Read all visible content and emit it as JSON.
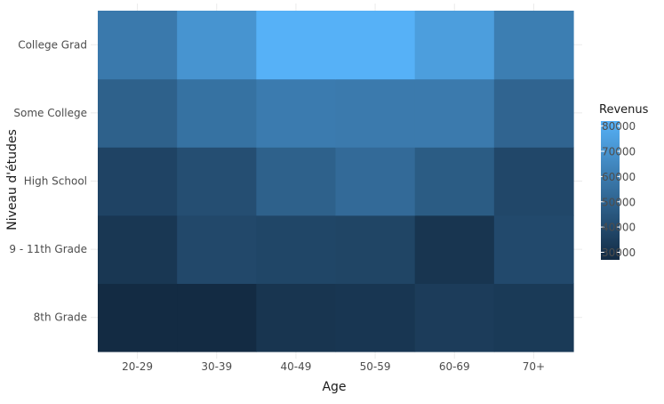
{
  "chart_data": {
    "type": "heatmap",
    "xlabel": "Age",
    "ylabel": "Niveau d'études",
    "x_categories": [
      "20-29",
      "30-39",
      "40-49",
      "50-59",
      "60-69",
      "70+"
    ],
    "y_categories": [
      "8th Grade",
      "9 - 11th Grade",
      "High School",
      "Some College",
      "College Grad"
    ],
    "values": [
      [
        27000,
        26000,
        31000,
        31500,
        34000,
        33000
      ],
      [
        32000,
        39000,
        38000,
        37500,
        31000,
        39500
      ],
      [
        37000,
        41500,
        49000,
        53000,
        47000,
        38500
      ],
      [
        49000,
        56000,
        60000,
        59500,
        59500,
        50500
      ],
      [
        59000,
        70000,
        82000,
        82000,
        74000,
        61000
      ]
    ],
    "legend": {
      "title": "Revenus",
      "ticks": [
        30000,
        40000,
        50000,
        60000,
        70000,
        80000
      ],
      "min": 27000,
      "max": 82000,
      "low_color": "#132B43",
      "high_color": "#56B1F7"
    },
    "grid": true
  }
}
